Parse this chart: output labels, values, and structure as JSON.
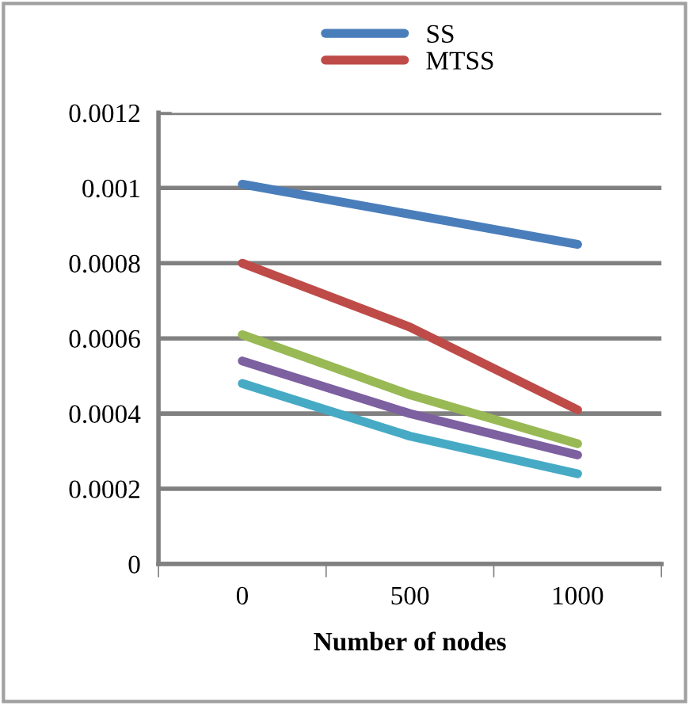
{
  "chart_data": {
    "type": "line",
    "xlabel": "Number of nodes",
    "categories": [
      "0",
      "500",
      "1000"
    ],
    "series": [
      {
        "name": "SS",
        "color": "#4a7ebb",
        "values": [
          0.00101,
          0.00093,
          0.00085
        ]
      },
      {
        "name": "MTSS",
        "color": "#be4b48",
        "values": [
          0.0008,
          0.00063,
          0.00041
        ]
      },
      {
        "color": "#98b954",
        "values": [
          0.00061,
          0.00045,
          0.00032
        ]
      },
      {
        "color": "#7d60a0",
        "values": [
          0.00054,
          0.0004,
          0.00029
        ]
      },
      {
        "color": "#46aac5",
        "values": [
          0.00048,
          0.00034,
          0.00024
        ]
      }
    ],
    "ylim": [
      0,
      0.0012
    ],
    "yticks": [
      0,
      0.0002,
      0.0004,
      0.0006,
      0.0008,
      0.001,
      0.0012
    ],
    "grid": "y",
    "legend": "top",
    "marker": "none",
    "line_style": "solid"
  }
}
